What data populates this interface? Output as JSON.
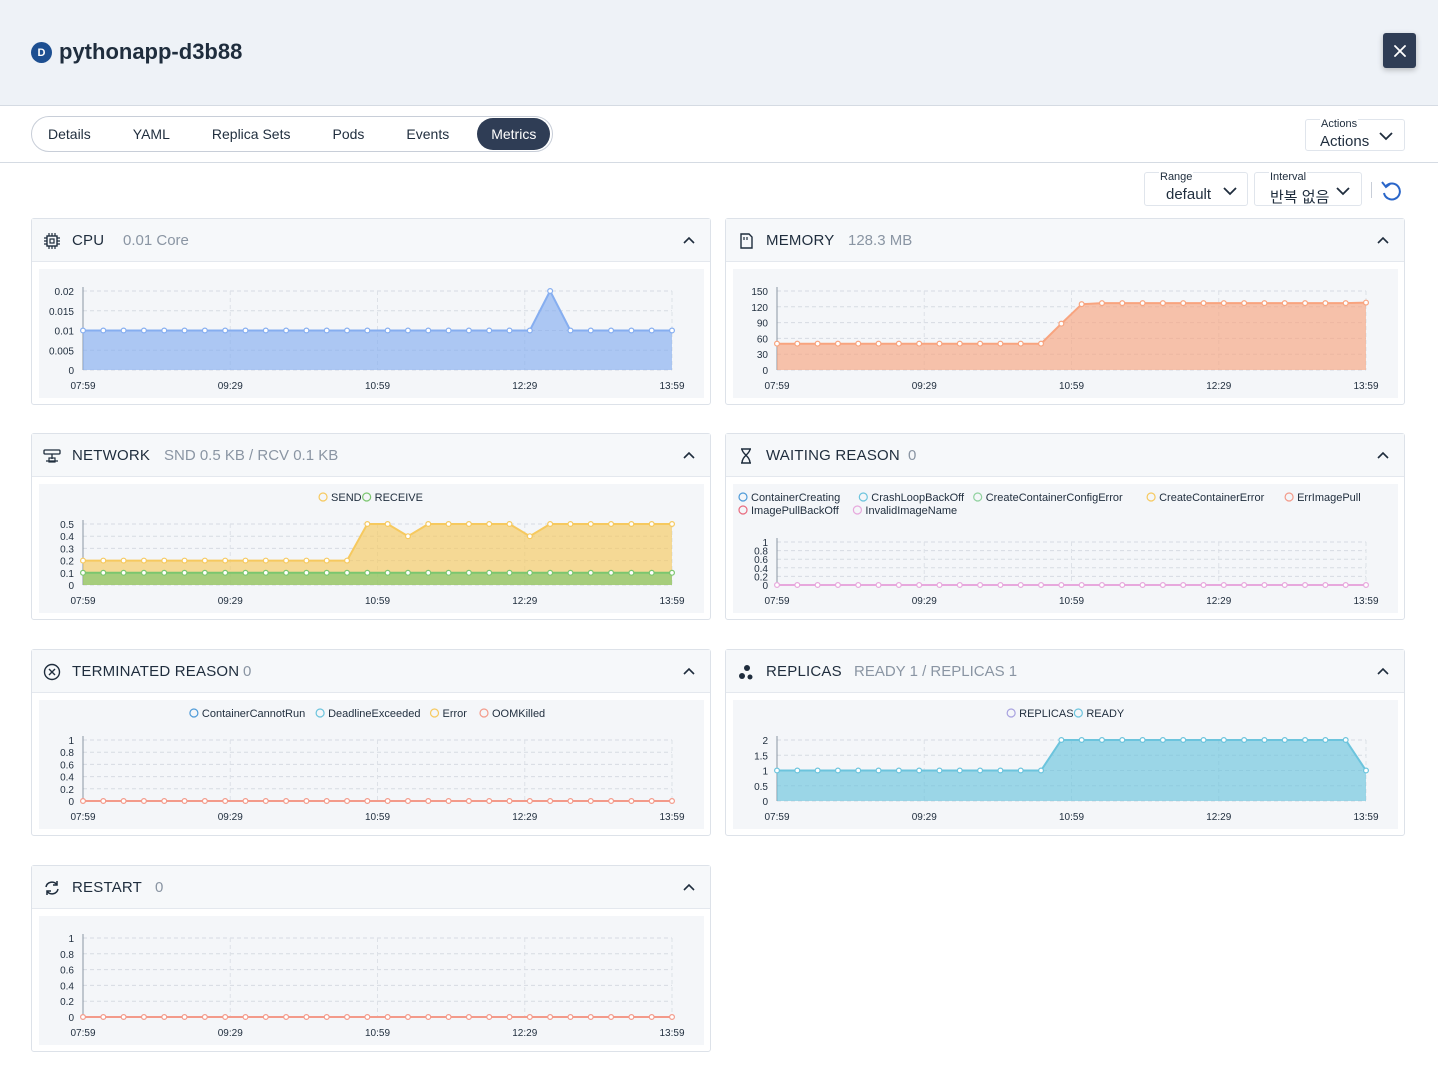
{
  "header": {
    "badge": "D",
    "title": "pythonapp-d3b88",
    "close_icon": "close-icon"
  },
  "tabs": [
    {
      "label": "Details",
      "active": false
    },
    {
      "label": "YAML",
      "active": false
    },
    {
      "label": "Replica Sets",
      "active": false
    },
    {
      "label": "Pods",
      "active": false
    },
    {
      "label": "Events",
      "active": false
    },
    {
      "label": "Metrics",
      "active": true
    }
  ],
  "actions": {
    "label": "Actions",
    "value": "Actions"
  },
  "filters": {
    "range": {
      "label": "Range",
      "value": "default"
    },
    "interval": {
      "label": "Interval",
      "value": "반복 없음"
    },
    "refresh_icon": "refresh-icon"
  },
  "colors": {
    "accent": "#2f3d55",
    "cpu": "#86aef0",
    "memory": "#f8a47f",
    "send": "#f6c95f",
    "receive": "#7bc66f",
    "replicas": "#6cc4dd",
    "zero_line": "#f39a8a",
    "waiting_line": "#e7a8dd"
  },
  "panels": [
    {
      "id": "cpu",
      "title": "CPU",
      "value": "0.01 Core",
      "icon": "cpu-chip-icon"
    },
    {
      "id": "memory",
      "title": "MEMORY",
      "value": "128.3 MB",
      "icon": "memory-card-icon"
    },
    {
      "id": "network",
      "title": "NETWORK",
      "value": "SND 0.5 KB / RCV 0.1 KB",
      "icon": "network-icon"
    },
    {
      "id": "waiting",
      "title": "WAITING REASON",
      "value": "0",
      "icon": "hourglass-icon"
    },
    {
      "id": "terminated",
      "title": "TERMINATED REASON",
      "value": "0",
      "icon": "circle-x-icon"
    },
    {
      "id": "replicas",
      "title": "REPLICAS",
      "value": "READY 1 / REPLICAS 1",
      "icon": "replicas-dots-icon"
    },
    {
      "id": "restart",
      "title": "RESTART",
      "value": "0",
      "icon": "restart-icon"
    }
  ],
  "chart_data": [
    {
      "panel": "cpu",
      "type": "area",
      "x_ticks": [
        "07:59",
        "09:29",
        "10:59",
        "12:29",
        "13:59"
      ],
      "y_ticks": [
        "0.02",
        "0.015",
        "0.01",
        "0.005",
        "0"
      ],
      "ylim": [
        0,
        0.02
      ],
      "grid": true,
      "series": [
        {
          "color": "#86aef0",
          "values": [
            0.01,
            0.01,
            0.01,
            0.01,
            0.01,
            0.01,
            0.01,
            0.01,
            0.01,
            0.01,
            0.01,
            0.01,
            0.01,
            0.01,
            0.01,
            0.01,
            0.01,
            0.01,
            0.01,
            0.01,
            0.01,
            0.01,
            0.01,
            0.02,
            0.01,
            0.01,
            0.01,
            0.01,
            0.01,
            0.01
          ]
        }
      ]
    },
    {
      "panel": "memory",
      "type": "area",
      "x_ticks": [
        "07:59",
        "09:29",
        "10:59",
        "12:29",
        "13:59"
      ],
      "y_ticks": [
        "150",
        "120",
        "90",
        "60",
        "30",
        "0"
      ],
      "ylim": [
        0,
        150
      ],
      "grid": true,
      "series": [
        {
          "color": "#f8a47f",
          "values": [
            50,
            50,
            50,
            50,
            50,
            50,
            50,
            50,
            50,
            50,
            50,
            50,
            50,
            50,
            88,
            125,
            127,
            127,
            127,
            127,
            127,
            127,
            127,
            127,
            127,
            127,
            127,
            127,
            127,
            128
          ]
        }
      ]
    },
    {
      "panel": "network",
      "type": "area",
      "x_ticks": [
        "07:59",
        "09:29",
        "10:59",
        "12:29",
        "13:59"
      ],
      "y_ticks": [
        "0.5",
        "0.4",
        "0.3",
        "0.2",
        "0.1",
        "0"
      ],
      "ylim": [
        0,
        0.5
      ],
      "grid": true,
      "legend": [
        "SEND",
        "RECEIVE"
      ],
      "series": [
        {
          "name": "SEND",
          "color": "#f6c95f",
          "values": [
            0.2,
            0.2,
            0.2,
            0.2,
            0.2,
            0.2,
            0.2,
            0.2,
            0.2,
            0.2,
            0.2,
            0.2,
            0.2,
            0.2,
            0.5,
            0.5,
            0.4,
            0.5,
            0.5,
            0.5,
            0.5,
            0.5,
            0.4,
            0.5,
            0.5,
            0.5,
            0.5,
            0.5,
            0.5,
            0.5
          ]
        },
        {
          "name": "RECEIVE",
          "color": "#7bc66f",
          "values": [
            0.1,
            0.1,
            0.1,
            0.1,
            0.1,
            0.1,
            0.1,
            0.1,
            0.1,
            0.1,
            0.1,
            0.1,
            0.1,
            0.1,
            0.1,
            0.1,
            0.1,
            0.1,
            0.1,
            0.1,
            0.1,
            0.1,
            0.1,
            0.1,
            0.1,
            0.1,
            0.1,
            0.1,
            0.1,
            0.1
          ]
        }
      ]
    },
    {
      "panel": "waiting",
      "type": "line",
      "x_ticks": [
        "07:59",
        "09:29",
        "10:59",
        "12:29",
        "13:59"
      ],
      "y_ticks": [
        "1",
        "0.8",
        "0.6",
        "0.4",
        "0.2",
        "0"
      ],
      "ylim": [
        0,
        1
      ],
      "grid": true,
      "legend": [
        "ContainerCreating",
        "CrashLoopBackOff",
        "CreateContainerConfigError",
        "CreateContainerError",
        "ErrImagePull",
        "ImagePullBackOff",
        "InvalidImageName"
      ],
      "series": [
        {
          "name": "InvalidImageName",
          "color": "#e7a8dd",
          "values": [
            0,
            0,
            0,
            0,
            0,
            0,
            0,
            0,
            0,
            0,
            0,
            0,
            0,
            0,
            0,
            0,
            0,
            0,
            0,
            0,
            0,
            0,
            0,
            0,
            0,
            0,
            0,
            0,
            0,
            0
          ]
        }
      ]
    },
    {
      "panel": "terminated",
      "type": "line",
      "x_ticks": [
        "07:59",
        "09:29",
        "10:59",
        "12:29",
        "13:59"
      ],
      "y_ticks": [
        "1",
        "0.8",
        "0.6",
        "0.4",
        "0.2",
        "0"
      ],
      "ylim": [
        0,
        1
      ],
      "grid": true,
      "legend": [
        "ContainerCannotRun",
        "DeadlineExceeded",
        "Error",
        "OOMKilled"
      ],
      "series": [
        {
          "name": "OOMKilled",
          "color": "#f39a8a",
          "values": [
            0,
            0,
            0,
            0,
            0,
            0,
            0,
            0,
            0,
            0,
            0,
            0,
            0,
            0,
            0,
            0,
            0,
            0,
            0,
            0,
            0,
            0,
            0,
            0,
            0,
            0,
            0,
            0,
            0,
            0
          ]
        }
      ]
    },
    {
      "panel": "replicas",
      "type": "area",
      "x_ticks": [
        "07:59",
        "09:29",
        "10:59",
        "12:29",
        "13:59"
      ],
      "y_ticks": [
        "2",
        "1.5",
        "1",
        "0.5",
        "0"
      ],
      "ylim": [
        0,
        2
      ],
      "grid": true,
      "legend": [
        "REPLICAS",
        "READY"
      ],
      "series": [
        {
          "name": "READY",
          "color": "#6cc4dd",
          "values": [
            1,
            1,
            1,
            1,
            1,
            1,
            1,
            1,
            1,
            1,
            1,
            1,
            1,
            1,
            2,
            2,
            2,
            2,
            2,
            2,
            2,
            2,
            2,
            2,
            2,
            2,
            2,
            2,
            2,
            1
          ]
        }
      ]
    },
    {
      "panel": "restart",
      "type": "line",
      "x_ticks": [
        "07:59",
        "09:29",
        "10:59",
        "12:29",
        "13:59"
      ],
      "y_ticks": [
        "1",
        "0.8",
        "0.6",
        "0.4",
        "0.2",
        "0"
      ],
      "ylim": [
        0,
        1
      ],
      "grid": true,
      "series": [
        {
          "color": "#f39a8a",
          "values": [
            0,
            0,
            0,
            0,
            0,
            0,
            0,
            0,
            0,
            0,
            0,
            0,
            0,
            0,
            0,
            0,
            0,
            0,
            0,
            0,
            0,
            0,
            0,
            0,
            0,
            0,
            0,
            0,
            0,
            0
          ]
        }
      ]
    }
  ]
}
